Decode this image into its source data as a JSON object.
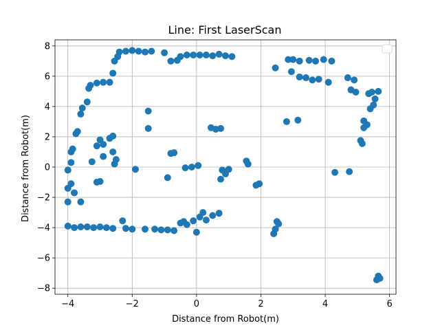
{
  "chart_data": {
    "type": "scatter",
    "title": "Line: First LaserScan",
    "xlabel": "Distance from Robot(m)",
    "ylabel": "Distance from Robot(m)",
    "xlim": [
      -4.4,
      6.2
    ],
    "ylim": [
      -8.4,
      8.4
    ],
    "xticks": [
      "−4",
      "−2",
      "0",
      "2",
      "4",
      "6"
    ],
    "xtick_values": [
      -4,
      -2,
      0,
      2,
      4,
      6
    ],
    "yticks": [
      "−8",
      "−6",
      "−4",
      "−2",
      "0",
      "2",
      "4",
      "6",
      "8"
    ],
    "ytick_values": [
      -8,
      -6,
      -4,
      -2,
      0,
      2,
      4,
      6,
      8
    ],
    "grid": true,
    "legend": "top-right (empty)",
    "marker_color": "#1f77b4",
    "series": [
      {
        "points": [
          [
            -2.55,
            7.0
          ],
          [
            -2.45,
            7.3
          ],
          [
            -2.4,
            7.6
          ],
          [
            -2.2,
            7.65
          ],
          [
            -2.0,
            7.7
          ],
          [
            -1.8,
            7.65
          ],
          [
            -1.6,
            7.6
          ],
          [
            -1.4,
            7.65
          ],
          [
            -1.0,
            7.55
          ],
          [
            -0.8,
            7.0
          ],
          [
            -0.6,
            7.05
          ],
          [
            -0.5,
            7.3
          ],
          [
            -0.3,
            7.4
          ],
          [
            -0.1,
            7.4
          ],
          [
            0.1,
            7.4
          ],
          [
            0.3,
            7.4
          ],
          [
            0.5,
            7.35
          ],
          [
            0.7,
            7.45
          ],
          [
            0.9,
            7.35
          ],
          [
            1.1,
            7.3
          ],
          [
            -2.6,
            6.2
          ],
          [
            -2.7,
            5.6
          ],
          [
            -2.9,
            5.6
          ],
          [
            -3.1,
            5.55
          ],
          [
            -3.3,
            5.4
          ],
          [
            -3.35,
            5.2
          ],
          [
            -3.4,
            4.3
          ],
          [
            -3.55,
            3.9
          ],
          [
            -3.6,
            3.5
          ],
          [
            -3.7,
            2.35
          ],
          [
            -3.75,
            2.2
          ],
          [
            -3.85,
            1.2
          ],
          [
            -3.9,
            1.0
          ],
          [
            -3.9,
            0.3
          ],
          [
            -4.0,
            -0.2
          ],
          [
            -3.9,
            -1.1
          ],
          [
            -4.0,
            -1.4
          ],
          [
            -3.8,
            -1.7
          ],
          [
            -3.6,
            -2.3
          ],
          [
            -4.0,
            -2.3
          ],
          [
            -3.0,
            1.8
          ],
          [
            -2.9,
            1.5
          ],
          [
            -3.1,
            1.4
          ],
          [
            -2.7,
            1.9
          ],
          [
            -2.6,
            2.05
          ],
          [
            -2.6,
            1.0
          ],
          [
            -2.5,
            0.5
          ],
          [
            -2.55,
            0.2
          ],
          [
            -2.9,
            0.7
          ],
          [
            -3.25,
            0.35
          ],
          [
            -3.0,
            -0.95
          ],
          [
            -3.1,
            -1.0
          ],
          [
            -4.0,
            -3.9
          ],
          [
            -3.8,
            -4.0
          ],
          [
            -3.6,
            -3.95
          ],
          [
            -3.4,
            -3.95
          ],
          [
            -3.2,
            -4.0
          ],
          [
            -3.0,
            -3.95
          ],
          [
            -2.8,
            -4.0
          ],
          [
            -2.6,
            -4.05
          ],
          [
            -2.3,
            -3.55
          ],
          [
            -2.2,
            -4.05
          ],
          [
            -2.0,
            -4.1
          ],
          [
            -1.6,
            -4.1
          ],
          [
            -1.3,
            -4.1
          ],
          [
            -1.1,
            -4.15
          ],
          [
            -0.9,
            -4.15
          ],
          [
            -0.7,
            -4.2
          ],
          [
            -0.5,
            -3.7
          ],
          [
            -0.3,
            -3.8
          ],
          [
            -0.1,
            -3.55
          ],
          [
            0.1,
            -3.3
          ],
          [
            0.3,
            -3.5
          ],
          [
            0.5,
            -3.2
          ],
          [
            0.7,
            -3.05
          ],
          [
            0.0,
            -4.3
          ],
          [
            -0.4,
            -3.6
          ],
          [
            0.2,
            -3.0
          ],
          [
            -1.5,
            3.7
          ],
          [
            -1.5,
            2.55
          ],
          [
            -1.9,
            -0.15
          ],
          [
            -0.8,
            0.9
          ],
          [
            -0.7,
            0.95
          ],
          [
            -0.9,
            -0.7
          ],
          [
            -0.35,
            -0.05
          ],
          [
            -0.15,
            0.0
          ],
          [
            0.05,
            0.1
          ],
          [
            0.45,
            2.6
          ],
          [
            0.6,
            2.5
          ],
          [
            0.75,
            2.55
          ],
          [
            0.8,
            -0.2
          ],
          [
            0.75,
            -0.8
          ],
          [
            0.9,
            -0.45
          ],
          [
            1.0,
            -0.15
          ],
          [
            1.55,
            0.4
          ],
          [
            1.6,
            0.2
          ],
          [
            1.85,
            -1.2
          ],
          [
            1.95,
            -1.1
          ],
          [
            2.45,
            6.55
          ],
          [
            2.85,
            7.1
          ],
          [
            3.0,
            7.1
          ],
          [
            3.2,
            7.0
          ],
          [
            3.5,
            7.05
          ],
          [
            3.7,
            7.0
          ],
          [
            3.95,
            7.1
          ],
          [
            4.2,
            7.0
          ],
          [
            2.95,
            6.3
          ],
          [
            3.2,
            5.95
          ],
          [
            3.4,
            5.9
          ],
          [
            3.6,
            5.75
          ],
          [
            3.8,
            5.8
          ],
          [
            4.1,
            5.6
          ],
          [
            4.7,
            5.9
          ],
          [
            4.9,
            5.75
          ],
          [
            4.8,
            5.1
          ],
          [
            4.95,
            4.95
          ],
          [
            5.35,
            4.85
          ],
          [
            5.45,
            4.95
          ],
          [
            5.65,
            5.0
          ],
          [
            5.55,
            4.5
          ],
          [
            5.5,
            4.1
          ],
          [
            5.4,
            3.85
          ],
          [
            5.2,
            3.05
          ],
          [
            5.3,
            2.8
          ],
          [
            5.2,
            2.6
          ],
          [
            5.1,
            1.75
          ],
          [
            5.15,
            1.55
          ],
          [
            2.8,
            3.0
          ],
          [
            3.15,
            3.1
          ],
          [
            4.3,
            -0.35
          ],
          [
            4.75,
            -0.3
          ],
          [
            2.5,
            -3.6
          ],
          [
            2.55,
            -3.75
          ],
          [
            2.45,
            -4.1
          ],
          [
            2.4,
            -4.4
          ],
          [
            5.65,
            -7.2
          ],
          [
            5.6,
            -7.45
          ],
          [
            5.7,
            -7.35
          ]
        ]
      }
    ]
  }
}
